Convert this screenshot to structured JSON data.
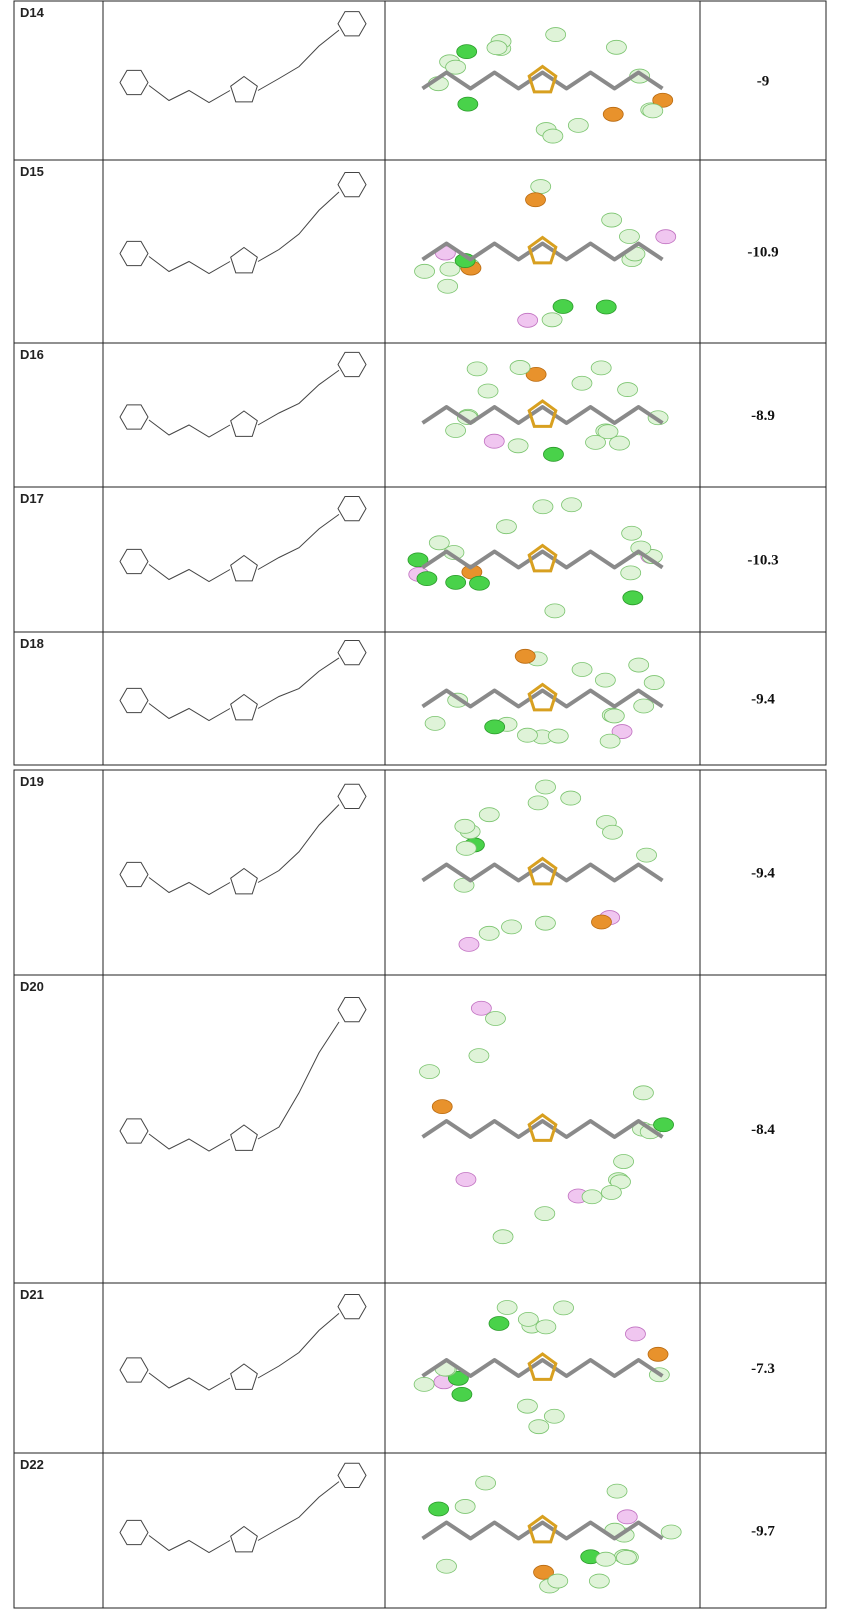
{
  "table": {
    "rows": [
      [
        "D14",
        "-9"
      ],
      [
        "D15",
        "-10.9"
      ],
      [
        "D16",
        "-8.9"
      ],
      [
        "D17",
        "-10.3"
      ],
      [
        "D18",
        "-9.4"
      ],
      [
        "D19",
        "-9.4"
      ],
      [
        "D20",
        "-8.4"
      ],
      [
        "D21",
        "-7.3"
      ],
      [
        "D22",
        "-9.7"
      ]
    ]
  }
}
